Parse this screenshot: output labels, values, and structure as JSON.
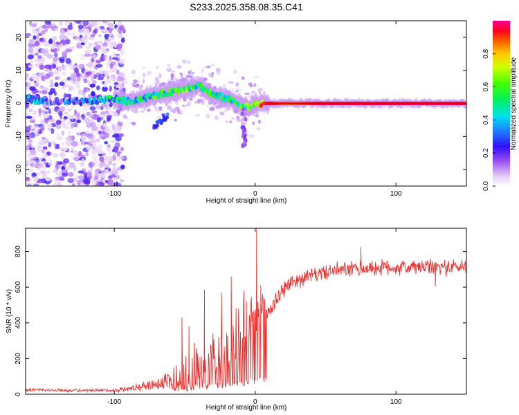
{
  "chart_data": [
    {
      "type": "heatmap",
      "title": "S233.2025.358.08.35.C41",
      "xlabel": "Height of straight line (km)",
      "ylabel": "Frequency (Hz)",
      "xlim": [
        -163,
        150
      ],
      "ylim": [
        -25,
        25
      ],
      "xticks": [
        -100,
        0,
        100
      ],
      "yticks": [
        -20,
        -10,
        0,
        10,
        20
      ],
      "colorbar": {
        "label": "Normalized spectral amplitude",
        "range": [
          0,
          1
        ],
        "ticks": [
          "0.0",
          "0.2",
          "0.4",
          "0.6",
          "0.8"
        ]
      },
      "ridge": {
        "x": [
          -163,
          -150,
          -140,
          -130,
          -120,
          -110,
          -100,
          -90,
          -80,
          -70,
          -60,
          -50,
          -45,
          -40,
          -30,
          -20,
          -10,
          -5,
          0,
          5,
          10,
          20,
          30,
          50,
          80,
          100,
          120,
          150
        ],
        "freq": [
          1.5,
          0.5,
          0.5,
          0.5,
          0.5,
          1.0,
          1.5,
          0.5,
          1.5,
          2.5,
          3.5,
          4.5,
          5.0,
          5.5,
          2.5,
          1.5,
          -0.5,
          -1.0,
          -0.5,
          0,
          0,
          0,
          0,
          0,
          0,
          0,
          0,
          0
        ],
        "amplitude": [
          0.4,
          0.2,
          0.2,
          0.25,
          0.3,
          0.4,
          0.45,
          0.5,
          0.45,
          0.5,
          0.5,
          0.55,
          0.5,
          0.45,
          0.5,
          0.45,
          0.5,
          0.55,
          0.7,
          0.9,
          0.95,
          0.9,
          0.9,
          0.95,
          0.95,
          0.95,
          0.95,
          0.95
        ]
      }
    },
    {
      "type": "line",
      "xlabel": "Height of straight line (km)",
      "ylabel": "SNR (10 * v/v)",
      "xlim": [
        -163,
        150
      ],
      "ylim": [
        0,
        930
      ],
      "xticks": [
        -100,
        0,
        100
      ],
      "yticks": [
        0,
        200,
        400,
        600,
        800
      ],
      "series": [
        {
          "name": "SNR",
          "color": "#e8302e",
          "x": [
            -163,
            -140,
            -120,
            -100,
            -90,
            -80,
            -70,
            -60,
            -55,
            -50,
            -45,
            -40,
            -35,
            -30,
            -25,
            -20,
            -15,
            -10,
            -5,
            0,
            5,
            10,
            15,
            20,
            25,
            30,
            40,
            50,
            60,
            70,
            80,
            90,
            100,
            110,
            120,
            130,
            140,
            150
          ],
          "mean": [
            25,
            22,
            20,
            22,
            30,
            45,
            60,
            75,
            90,
            110,
            130,
            150,
            170,
            190,
            210,
            230,
            250,
            270,
            300,
            330,
            400,
            470,
            530,
            590,
            620,
            640,
            665,
            685,
            695,
            700,
            705,
            710,
            710,
            710,
            712,
            712,
            712,
            715
          ],
          "spread": [
            15,
            10,
            10,
            12,
            20,
            30,
            45,
            90,
            120,
            150,
            180,
            170,
            160,
            180,
            200,
            220,
            260,
            280,
            300,
            330,
            180,
            90,
            70,
            60,
            55,
            55,
            50,
            50,
            55,
            55,
            55,
            55,
            55,
            55,
            55,
            55,
            55,
            55
          ],
          "peaks": [
            {
              "x": -52,
              "y": 430
            },
            {
              "x": -47,
              "y": 380
            },
            {
              "x": -36,
              "y": 585
            },
            {
              "x": -24,
              "y": 570
            },
            {
              "x": -17,
              "y": 660
            },
            {
              "x": -8,
              "y": 580
            },
            {
              "x": 1,
              "y": 930
            },
            {
              "x": 4,
              "y": 610
            },
            {
              "x": 75,
              "y": 825
            },
            {
              "x": 128,
              "y": 605
            }
          ]
        }
      ]
    }
  ]
}
